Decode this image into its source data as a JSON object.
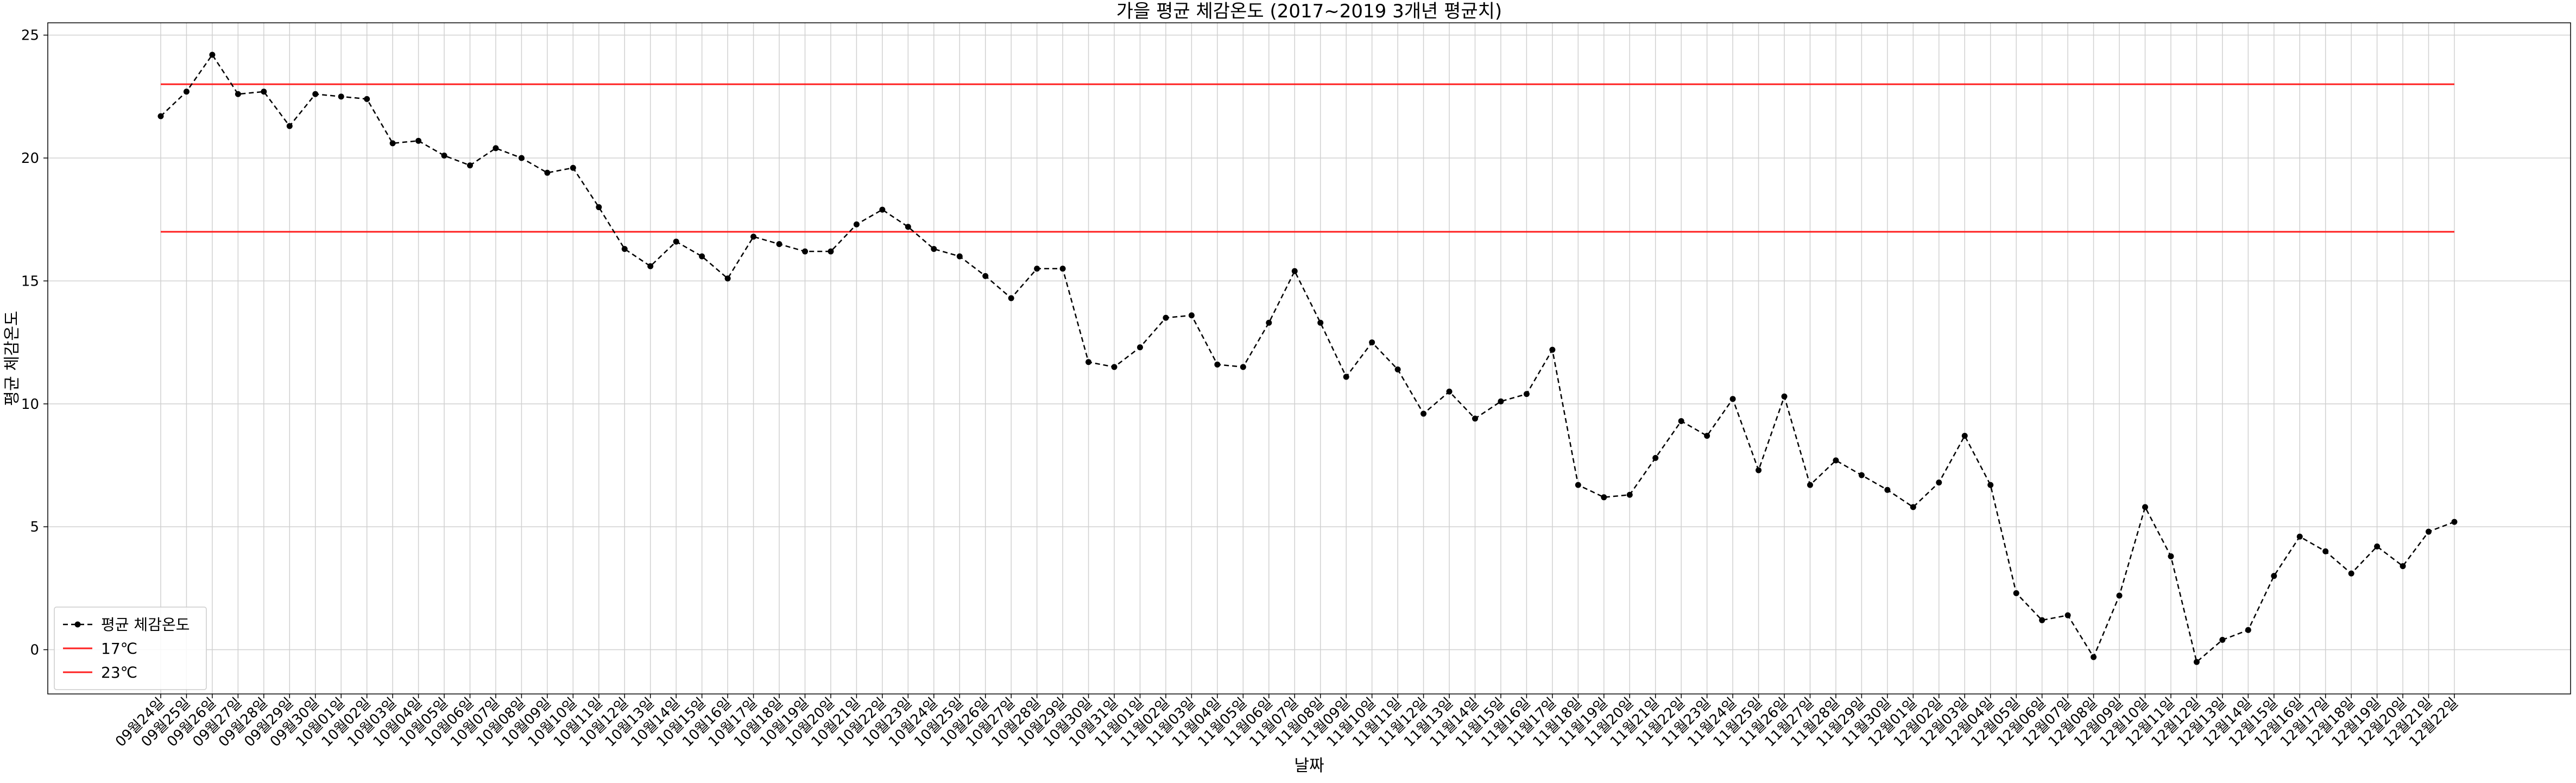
{
  "chart_data": {
    "type": "line",
    "title": "가을 평균 체감온도 (2017~2019 3개년 평균치)",
    "xlabel": "날짜",
    "ylabel": "평균 체감온도",
    "ylim": [
      -1.8,
      25.5
    ],
    "yticks": [
      0,
      5,
      10,
      15,
      20,
      25
    ],
    "grid": true,
    "legend_position": "lower-left",
    "categories": [
      "09월24일",
      "09월25일",
      "09월26일",
      "09월27일",
      "09월28일",
      "09월29일",
      "09월30일",
      "10월01일",
      "10월02일",
      "10월03일",
      "10월04일",
      "10월05일",
      "10월06일",
      "10월07일",
      "10월08일",
      "10월09일",
      "10월10일",
      "10월11일",
      "10월12일",
      "10월13일",
      "10월14일",
      "10월15일",
      "10월16일",
      "10월17일",
      "10월18일",
      "10월19일",
      "10월20일",
      "10월21일",
      "10월22일",
      "10월23일",
      "10월24일",
      "10월25일",
      "10월26일",
      "10월27일",
      "10월28일",
      "10월29일",
      "10월30일",
      "10월31일",
      "11월01일",
      "11월02일",
      "11월03일",
      "11월04일",
      "11월05일",
      "11월06일",
      "11월07일",
      "11월08일",
      "11월09일",
      "11월10일",
      "11월11일",
      "11월12일",
      "11월13일",
      "11월14일",
      "11월15일",
      "11월16일",
      "11월17일",
      "11월18일",
      "11월19일",
      "11월20일",
      "11월21일",
      "11월22일",
      "11월23일",
      "11월24일",
      "11월25일",
      "11월26일",
      "11월27일",
      "11월28일",
      "11월29일",
      "11월30일",
      "12월01일",
      "12월02일",
      "12월03일",
      "12월04일",
      "12월05일",
      "12월06일",
      "12월07일",
      "12월08일",
      "12월09일",
      "12월10일",
      "12월11일",
      "12월12일",
      "12월13일",
      "12월14일",
      "12월15일",
      "12월16일",
      "12월17일",
      "12월18일",
      "12월19일",
      "12월20일",
      "12월21일",
      "12월22일"
    ],
    "series": [
      {
        "name": "평균 체감온도",
        "color": "#000000",
        "style": "dashed-with-circle-markers",
        "values": [
          21.7,
          22.7,
          24.2,
          22.6,
          22.7,
          21.3,
          22.6,
          22.5,
          22.4,
          20.6,
          20.7,
          20.1,
          19.7,
          20.4,
          20.0,
          19.4,
          19.6,
          18.0,
          16.3,
          15.6,
          16.6,
          16.0,
          15.1,
          16.8,
          16.5,
          16.2,
          16.2,
          17.3,
          17.9,
          17.2,
          16.3,
          16.0,
          15.2,
          14.3,
          15.5,
          15.5,
          11.7,
          11.5,
          12.3,
          13.5,
          13.6,
          11.6,
          11.5,
          13.3,
          15.4,
          13.3,
          11.1,
          12.5,
          11.4,
          9.6,
          10.5,
          9.4,
          10.1,
          10.4,
          12.2,
          6.7,
          6.2,
          6.3,
          7.8,
          9.3,
          8.7,
          10.2,
          7.3,
          10.3,
          6.7,
          7.7,
          7.1,
          6.5,
          5.8,
          6.8,
          8.7,
          6.7,
          2.3,
          1.2,
          1.4,
          -0.3,
          2.2,
          5.8,
          3.8,
          -0.5,
          0.4,
          0.8,
          3.0,
          4.6,
          4.0,
          3.1,
          4.2,
          3.4,
          4.8,
          5.2
        ]
      },
      {
        "name": "17℃",
        "color": "#ff2020",
        "style": "solid",
        "constant": 17
      },
      {
        "name": "23℃",
        "color": "#ff2020",
        "style": "solid",
        "constant": 23
      }
    ]
  }
}
